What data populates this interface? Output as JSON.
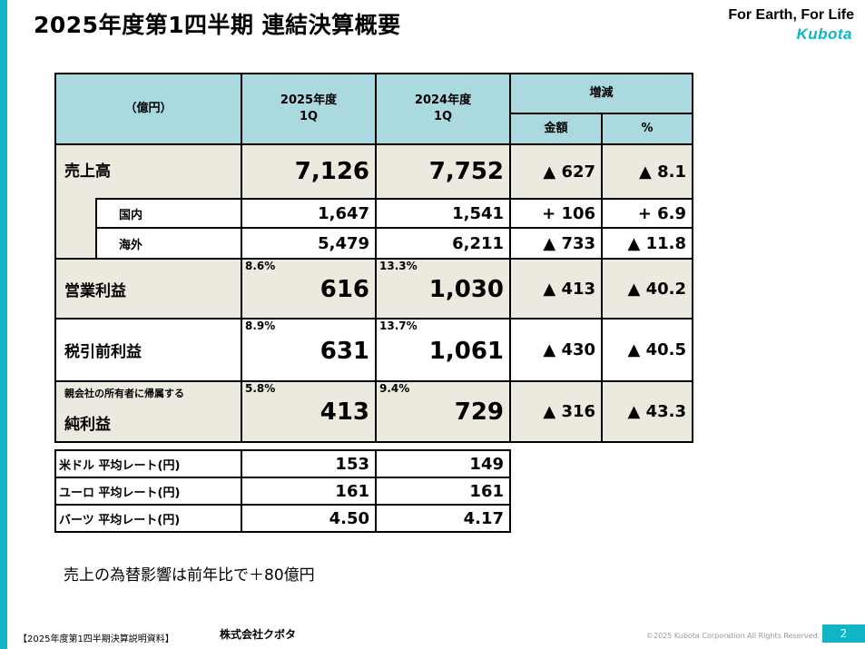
{
  "header": {
    "title": "2025年度第1四半期 連結決算概要",
    "slogan": "For Earth, For Life",
    "brand": "Kubota"
  },
  "table": {
    "unit_label": "（億円）",
    "col_2025": "2025年度",
    "col_2024": "2024年度",
    "col_period": "1Q",
    "col_change": "増減",
    "col_amount": "金額",
    "col_percent": "%",
    "rows": {
      "sales": {
        "label": "売上高",
        "v2025": "7,126",
        "v2024": "7,752",
        "amount": "▲ 627",
        "percent": "▲ 8.1"
      },
      "domestic": {
        "label": "国内",
        "v2025": "1,647",
        "v2024": "1,541",
        "amount": "+ 106",
        "percent": "+ 6.9"
      },
      "overseas": {
        "label": "海外",
        "v2025": "5,479",
        "v2024": "6,211",
        "amount": "▲ 733",
        "percent": "▲ 11.8"
      },
      "operating": {
        "label": "営業利益",
        "m2025": "8.6%",
        "v2025": "616",
        "m2024": "13.3%",
        "v2024": "1,030",
        "amount": "▲ 413",
        "percent": "▲ 40.2"
      },
      "pretax": {
        "label": "税引前利益",
        "m2025": "8.9%",
        "v2025": "631",
        "m2024": "13.7%",
        "v2024": "1,061",
        "amount": "▲ 430",
        "percent": "▲ 40.5"
      },
      "net": {
        "small_label": "親会社の所有者に帰属する",
        "label": "純利益",
        "m2025": "5.8%",
        "v2025": "413",
        "m2024": "9.4%",
        "v2024": "729",
        "amount": "▲ 316",
        "percent": "▲ 43.3"
      }
    }
  },
  "fx": [
    {
      "label": "米ドル 平均レート(円)",
      "v2025": "153",
      "v2024": "149"
    },
    {
      "label": "ユーロ 平均レート(円)",
      "v2025": "161",
      "v2024": "161"
    },
    {
      "label": "バーツ 平均レート(円)",
      "v2025": "4.50",
      "v2024": "4.17"
    }
  ],
  "note": "売上の為替影響は前年比で＋80億円",
  "footer": {
    "document": "【2025年度第1四半期決算説明資料】",
    "company": "株式会社クボタ",
    "copyright": "©2025 Kubota Corporation All Rights Reserved.",
    "page": "2"
  },
  "colors": {
    "accent": "#12b5c6",
    "header_fill": "#abd9e0",
    "beige_fill": "#ece9df"
  }
}
